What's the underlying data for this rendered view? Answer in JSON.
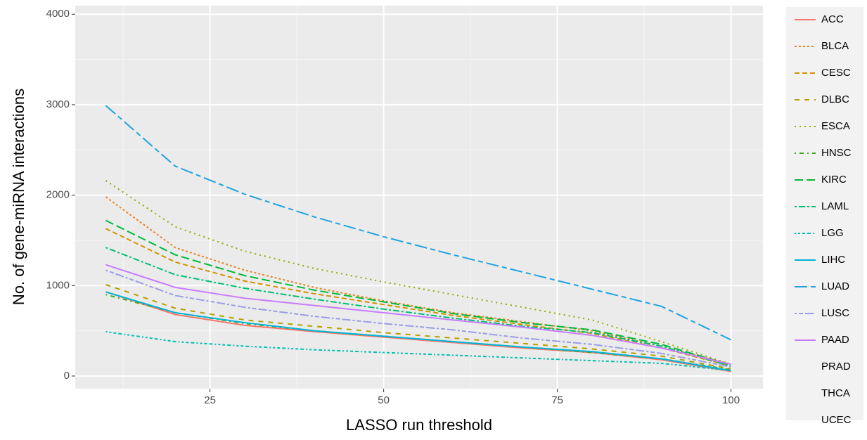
{
  "chart_data": {
    "type": "line",
    "xlabel": "LASSO run threshold",
    "ylabel": "No. of gene-miRNA interactions",
    "x": [
      10,
      20,
      30,
      40,
      50,
      60,
      70,
      80,
      90,
      100
    ],
    "xlim": [
      5.6,
      104.6
    ],
    "xticks": [
      25,
      50,
      75,
      100
    ],
    "ylim": [
      -140,
      4095
    ],
    "yticks": [
      0,
      1000,
      2000,
      3000,
      4000
    ],
    "grid": true,
    "legend": "right",
    "series": [
      {
        "name": "ACC",
        "color": "#F8766D",
        "dash": "none",
        "values": [
          930,
          680,
          560,
          490,
          430,
          370,
          310,
          260,
          180,
          50
        ]
      },
      {
        "name": "BLCA",
        "color": "#E88526",
        "dash": "3 3",
        "values": [
          1980,
          1420,
          1170,
          980,
          830,
          700,
          600,
          500,
          330,
          130
        ]
      },
      {
        "name": "CESC",
        "color": "#D39200",
        "dash": "7 4",
        "values": [
          1630,
          1260,
          1050,
          910,
          790,
          670,
          570,
          470,
          310,
          110
        ]
      },
      {
        "name": "DLBC",
        "color": "#B79F00",
        "dash": "7 7",
        "values": [
          1010,
          750,
          620,
          550,
          480,
          420,
          360,
          300,
          220,
          80
        ]
      },
      {
        "name": "ESCA",
        "color": "#93AA00",
        "dash": "2 5",
        "values": [
          2160,
          1650,
          1380,
          1190,
          1040,
          900,
          760,
          620,
          380,
          130
        ]
      },
      {
        "name": "HNSC",
        "color": "#3CA81E",
        "dash": "2 5 6 5",
        "values": [
          900,
          700,
          580,
          500,
          440,
          380,
          320,
          260,
          190,
          70
        ]
      },
      {
        "name": "KIRC",
        "color": "#00BA38",
        "dash": "12 5",
        "values": [
          1720,
          1340,
          1110,
          950,
          820,
          690,
          590,
          510,
          350,
          120
        ]
      },
      {
        "name": "LAML",
        "color": "#00BF74",
        "dash": "3 3 9 3",
        "values": [
          1420,
          1120,
          970,
          850,
          740,
          640,
          550,
          480,
          330,
          110
        ]
      },
      {
        "name": "LGG",
        "color": "#00C1B0",
        "dash": "2 3 3 3 4 3 5 3",
        "values": [
          490,
          380,
          330,
          290,
          260,
          230,
          200,
          170,
          140,
          60
        ]
      },
      {
        "name": "LIHC",
        "color": "#00B5D6",
        "dash": "none",
        "values": [
          930,
          700,
          590,
          500,
          440,
          380,
          320,
          270,
          190,
          60
        ]
      },
      {
        "name": "LUAD",
        "color": "#1EA3E0",
        "dash": "18 5 7 5",
        "values": [
          2990,
          2320,
          2010,
          1760,
          1540,
          1340,
          1150,
          960,
          770,
          400
        ]
      },
      {
        "name": "LUSC",
        "color": "#9A9CE8",
        "dash": "3 3 6 3 12 3",
        "values": [
          1170,
          890,
          760,
          660,
          580,
          510,
          420,
          350,
          250,
          100
        ]
      },
      {
        "name": "PAAD",
        "color": "#C77CFF",
        "dash": "none",
        "values": [
          1230,
          980,
          860,
          780,
          700,
          620,
          540,
          450,
          310,
          130
        ]
      },
      {
        "name": "PRAD",
        "color": "#E76BF3",
        "dash": "none",
        "values": [
          null,
          null,
          null,
          null,
          null,
          null,
          null,
          null,
          null,
          null
        ]
      },
      {
        "name": "THCA",
        "color": "#F564E3",
        "dash": "none",
        "values": [
          null,
          null,
          null,
          null,
          null,
          null,
          null,
          null,
          null,
          null
        ]
      },
      {
        "name": "UCEC",
        "color": "#FF62BC",
        "dash": "none",
        "values": [
          null,
          null,
          null,
          null,
          null,
          null,
          null,
          null,
          null,
          null
        ]
      }
    ]
  }
}
